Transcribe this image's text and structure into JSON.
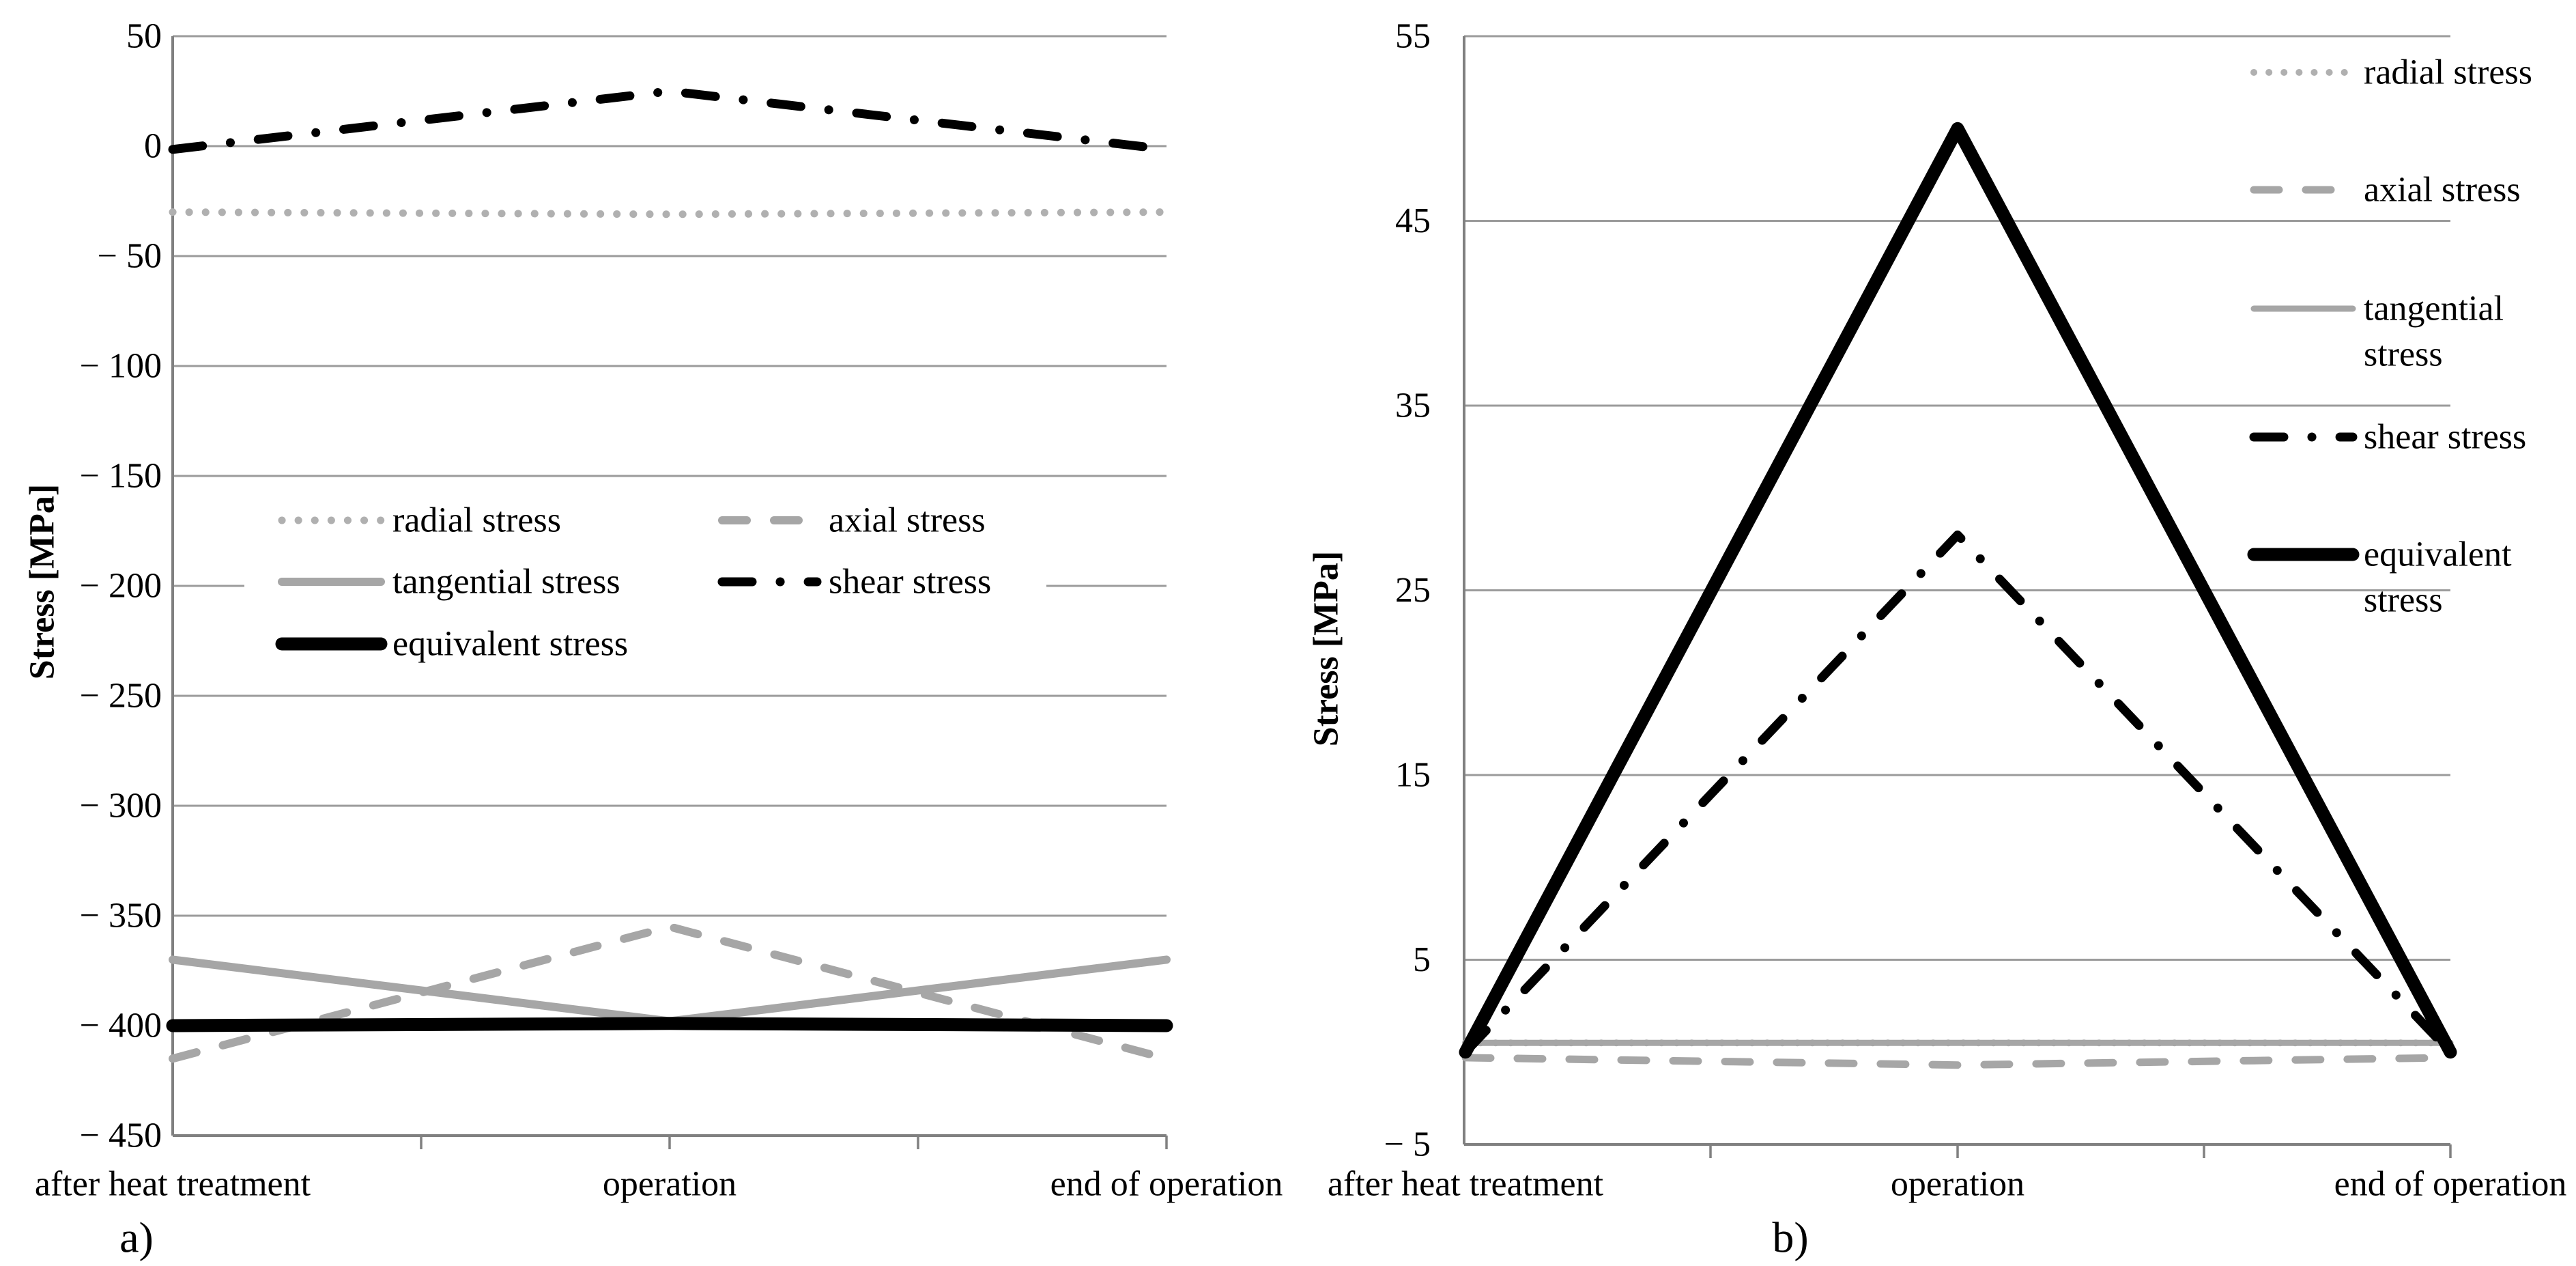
{
  "figure": {
    "description": "Two side-by-side line charts of stress evolution over process stages",
    "background": "#ffffff"
  },
  "styles": {
    "grid_color": "#9b9b9b",
    "axis_color": "#808080",
    "text_color": "#000000",
    "series_gray": "#a6a6a6",
    "series_light_gray": "#b0b0b0",
    "series_black": "#000000"
  },
  "chart_data": [
    {
      "id": "a",
      "type": "line",
      "panel_label": "a)",
      "ylabel": "Stress [MPa]",
      "xlabel": "",
      "categories": [
        "after heat treatment",
        "operation",
        "end of operation"
      ],
      "ylim": [
        -450,
        50
      ],
      "y_ticks": [
        50,
        0,
        -50,
        -100,
        -150,
        -200,
        -250,
        -300,
        -350,
        -400,
        -450
      ],
      "y_tick_labels": [
        "50",
        "0",
        "− 50",
        "− 100",
        "− 150",
        "− 200",
        "− 250",
        "− 300",
        "− 350",
        "− 400",
        "− 450"
      ],
      "grid": "horizontal",
      "legend_position": "inside-left-middle-two-columns",
      "series": [
        {
          "name": "radial stress",
          "dash": "dotted",
          "color": "#b0b0b0",
          "width": 11,
          "values": [
            -30,
            -31,
            -30
          ]
        },
        {
          "name": "axial stress",
          "dash": "dashed",
          "color": "#a6a6a6",
          "width": 12,
          "values": [
            -415,
            -355,
            -415
          ]
        },
        {
          "name": "tangential stress",
          "dash": "solid",
          "color": "#a6a6a6",
          "width": 12,
          "values": [
            -370,
            -398,
            -370
          ]
        },
        {
          "name": "shear stress",
          "dash": "dashdot",
          "color": "#000000",
          "width": 13,
          "values": [
            -1.5,
            25,
            -1.5
          ]
        },
        {
          "name": "equivalent stress",
          "dash": "solid",
          "color": "#000000",
          "width": 19,
          "values": [
            -400,
            -399,
            -400
          ]
        }
      ]
    },
    {
      "id": "b",
      "type": "line",
      "panel_label": "b)",
      "ylabel": "Stress [MPa]",
      "xlabel": "",
      "categories": [
        "after heat treatment",
        "operation",
        "end of operation"
      ],
      "ylim": [
        -5,
        55
      ],
      "y_ticks": [
        55,
        45,
        35,
        25,
        15,
        5,
        -5
      ],
      "y_tick_labels": [
        "55",
        "45",
        "35",
        "25",
        "15",
        "5",
        "− 5"
      ],
      "grid": "horizontal",
      "legend_position": "outside-right-column",
      "series": [
        {
          "name": "radial stress",
          "dash": "dotted",
          "color": "#b0b0b0",
          "width": 10,
          "values": [
            0.5,
            0.5,
            0.5
          ]
        },
        {
          "name": "axial stress",
          "dash": "dashed",
          "color": "#a6a6a6",
          "width": 11,
          "values": [
            -0.3,
            -0.7,
            -0.3
          ]
        },
        {
          "name": "tangential stress",
          "dash": "solid",
          "color": "#a6a6a6",
          "width": 9,
          "values": [
            0.5,
            0.5,
            0.5
          ]
        },
        {
          "name": "shear stress",
          "dash": "dashdot",
          "color": "#000000",
          "width": 13,
          "values": [
            0,
            28,
            0
          ]
        },
        {
          "name": "equivalent stress",
          "dash": "solid",
          "color": "#000000",
          "width": 19,
          "values": [
            0,
            50,
            0
          ]
        }
      ]
    }
  ]
}
